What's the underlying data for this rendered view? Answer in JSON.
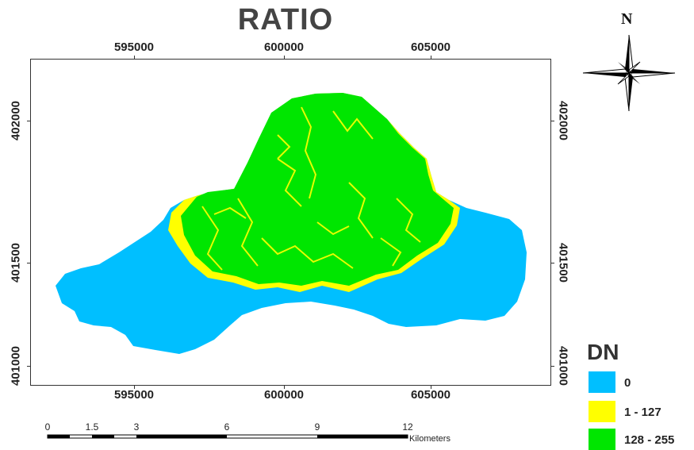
{
  "map": {
    "title": "RATIO",
    "x_ticks": [
      "595000",
      "600000",
      "605000"
    ],
    "y_ticks": [
      "402000",
      "401500",
      "401000"
    ]
  },
  "north_arrow": {
    "label": "N",
    "icon": "compass-rose-icon"
  },
  "legend": {
    "title": "DN",
    "items": [
      {
        "label": "0",
        "color": "#00BFFF"
      },
      {
        "label": "1 - 127",
        "color": "#FFFF00"
      },
      {
        "label": "128 - 255",
        "color": "#00E600"
      }
    ]
  },
  "scale_bar": {
    "ticks": [
      "0",
      "1.5",
      "3",
      "6",
      "9",
      "12"
    ],
    "unit": "Kilometers"
  }
}
